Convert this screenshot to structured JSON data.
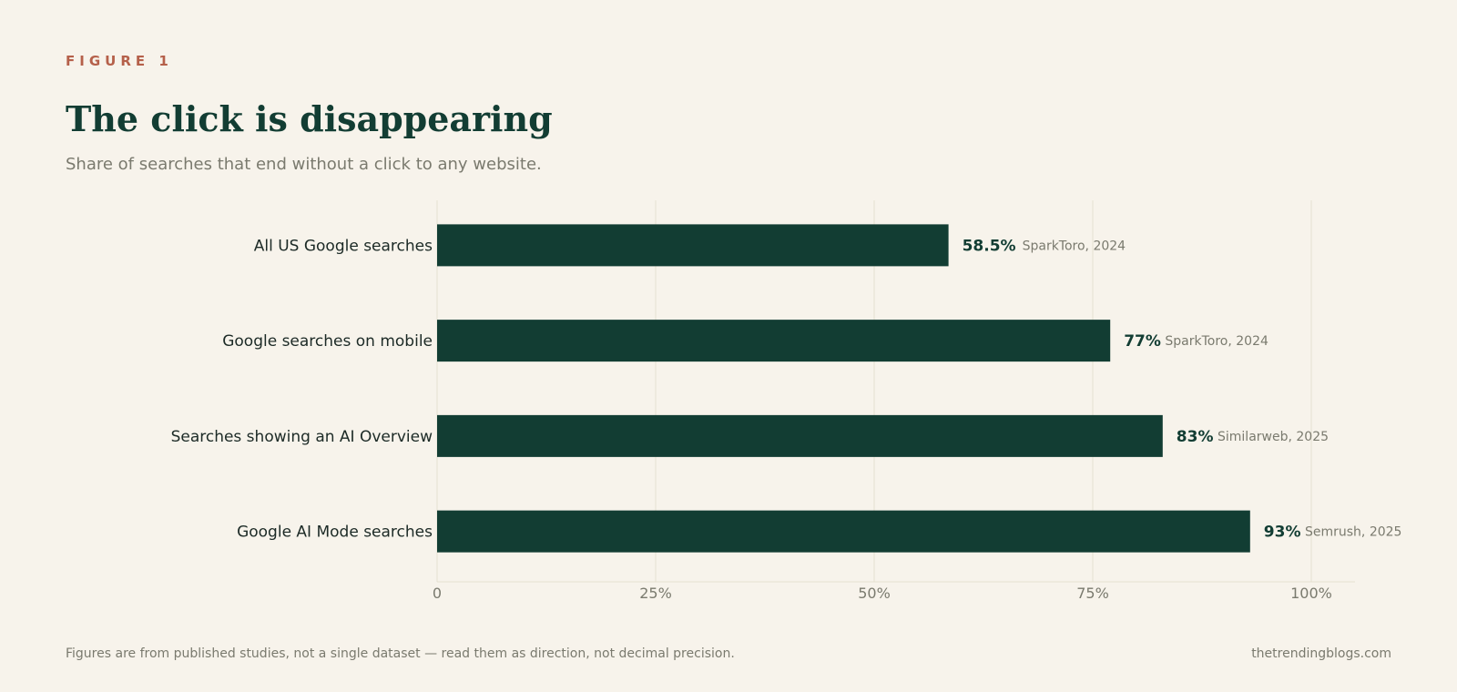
{
  "header": {
    "eyebrow": "FIGURE 1",
    "title": "The click is disappearing",
    "subtitle": "Share of searches that end without a click to any website."
  },
  "footer": {
    "note": "Figures are from published studies, not a single dataset — read them as direction, not decimal precision.",
    "site": "thetrendingblogs.com"
  },
  "colors": {
    "bar": "#123d33",
    "accent": "#b5604a",
    "grid": "#e6e0d0",
    "muted": "#7a7a6e",
    "label": "#1c2a26"
  },
  "chart_data": {
    "type": "bar",
    "orientation": "horizontal",
    "categories": [
      "All US Google searches",
      "Google searches on mobile",
      "Searches showing an AI Overview",
      "Google AI Mode searches"
    ],
    "values": [
      58.5,
      77,
      83,
      93
    ],
    "value_labels": [
      "58.5%",
      "77%",
      "83%",
      "93%"
    ],
    "sources": [
      "SparkToro, 2024",
      "SparkToro, 2024",
      "Similarweb, 2025",
      "Semrush, 2025"
    ],
    "xlim": [
      0,
      105
    ],
    "xticks": [
      0,
      25,
      50,
      75,
      100
    ],
    "xtick_labels": [
      "0",
      "25%",
      "50%",
      "75%",
      "100%"
    ],
    "grid": true,
    "legend": "none"
  }
}
